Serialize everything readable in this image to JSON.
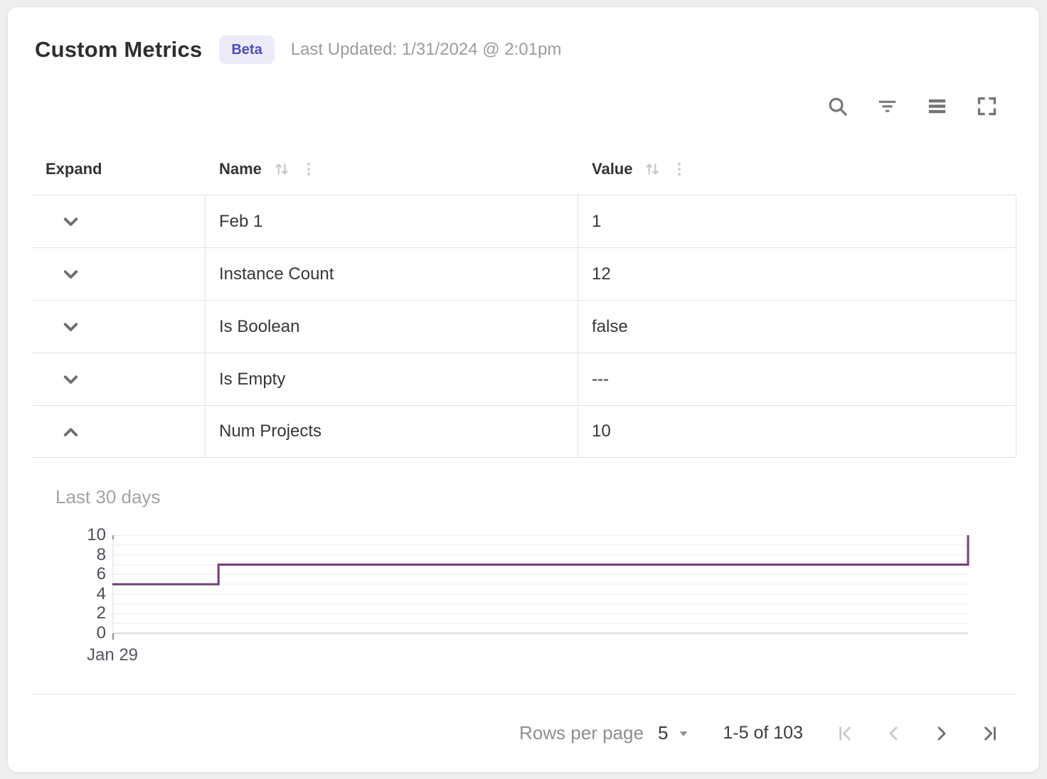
{
  "header": {
    "title": "Custom Metrics",
    "badge": "Beta",
    "last_updated": "Last Updated: 1/31/2024 @ 2:01pm"
  },
  "toolbar": {
    "icons": [
      "search-icon",
      "filter-icon",
      "density-icon",
      "fullscreen-icon"
    ]
  },
  "table": {
    "columns": {
      "expand": "Expand",
      "name": "Name",
      "value": "Value"
    },
    "rows": [
      {
        "name": "Feb 1",
        "value": "1",
        "expanded": false
      },
      {
        "name": "Instance Count",
        "value": "12",
        "expanded": false
      },
      {
        "name": "Is Boolean",
        "value": "false",
        "expanded": false
      },
      {
        "name": "Is Empty",
        "value": "---",
        "expanded": false
      },
      {
        "name": "Num Projects",
        "value": "10",
        "expanded": true
      }
    ]
  },
  "chart_data": {
    "type": "line",
    "subtype": "step-after",
    "title": "Last 30 days",
    "series": [
      {
        "name": "Num Projects",
        "points": [
          {
            "x": 0.0,
            "y": 5
          },
          {
            "x": 0.124,
            "y": 7
          },
          {
            "x": 1.0,
            "y": 10
          }
        ]
      }
    ],
    "xticks": [
      "Jan 29"
    ],
    "yticks": [
      0,
      2,
      4,
      6,
      8,
      10
    ],
    "ylim": [
      0,
      10
    ],
    "grid": true,
    "legend": false,
    "line_color": "#733c73"
  },
  "footer": {
    "rows_per_page_label": "Rows per page",
    "rows_per_page_value": "5",
    "range_label": "1-5 of 103",
    "pagination": {
      "first_enabled": false,
      "prev_enabled": false,
      "next_enabled": true,
      "last_enabled": true
    }
  },
  "colors": {
    "badge_bg": "#ecebfa",
    "badge_text": "#4c4cc0",
    "chart_line": "#733c73",
    "border": "#e2e2e2"
  }
}
